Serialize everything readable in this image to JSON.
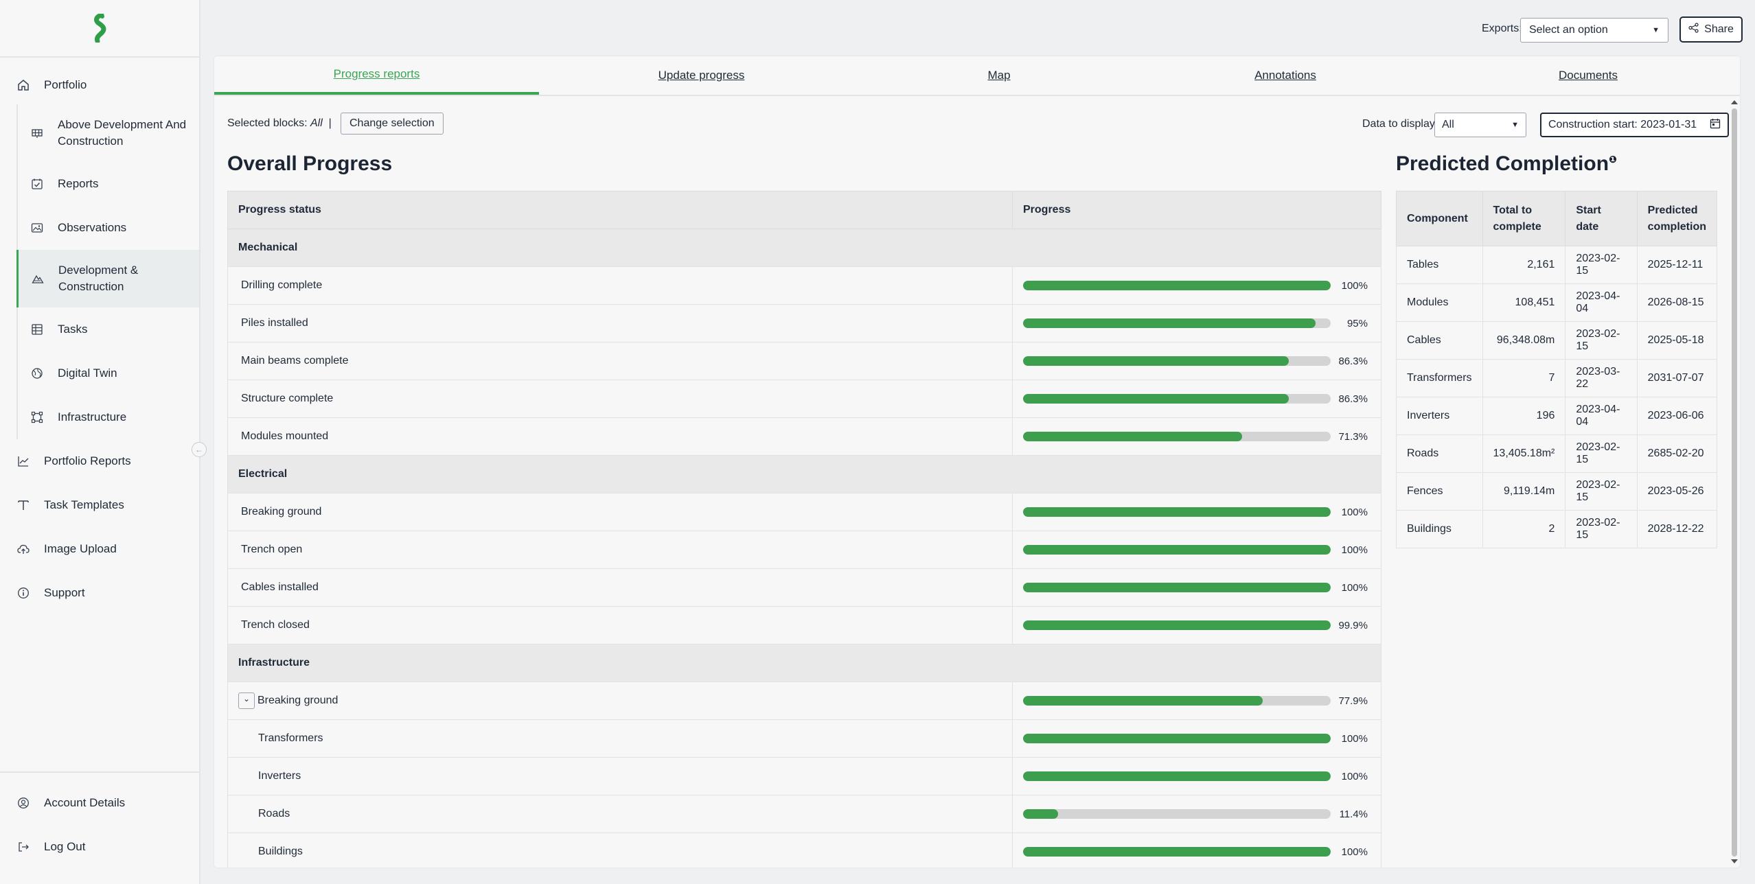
{
  "sidebar": {
    "top_items": [
      {
        "label": "Portfolio",
        "icon": "home-icon"
      }
    ],
    "sub_items": [
      {
        "label": "Above Development And Construction",
        "icon": "solar-panel-icon"
      },
      {
        "label": "Reports",
        "icon": "calendar-check-icon"
      },
      {
        "label": "Observations",
        "icon": "image-icon"
      },
      {
        "label": "Development & Construction",
        "icon": "terrain-icon"
      },
      {
        "label": "Tasks",
        "icon": "table-icon"
      },
      {
        "label": "Digital Twin",
        "icon": "globe-icon"
      },
      {
        "label": "Infrastructure",
        "icon": "frame-icon"
      }
    ],
    "items": [
      {
        "label": "Portfolio Reports",
        "icon": "chart-line-icon"
      },
      {
        "label": "Task Templates",
        "icon": "template-icon"
      },
      {
        "label": "Image Upload",
        "icon": "cloud-upload-icon"
      },
      {
        "label": "Support",
        "icon": "info-icon"
      }
    ],
    "bottom_items": [
      {
        "label": "Account Details",
        "icon": "user-circle-icon"
      },
      {
        "label": "Log Out",
        "icon": "logout-icon"
      }
    ]
  },
  "topbar": {
    "exports_label": "Exports:",
    "exports_value": "Select an option",
    "share_label": "Share"
  },
  "tabs": [
    "Progress reports",
    "Update progress",
    "Map",
    "Annotations",
    "Documents"
  ],
  "toolbar": {
    "selected_blocks_label": "Selected blocks:",
    "selected_blocks_value": "All",
    "separator": "|",
    "change_selection": "Change selection",
    "data_to_display_label": "Data to display:",
    "data_to_display_value": "All",
    "construction_start": "Construction start: 2023-01-31"
  },
  "overall": {
    "title": "Overall Progress",
    "col_status": "Progress status",
    "col_progress": "Progress",
    "rows": [
      {
        "type": "group",
        "name": "Mechanical"
      },
      {
        "type": "row",
        "name": "Drilling complete",
        "pct": "100%",
        "value": 100
      },
      {
        "type": "row",
        "name": "Piles installed",
        "pct": "95%",
        "value": 95
      },
      {
        "type": "row",
        "name": "Main beams complete",
        "pct": "86.3%",
        "value": 86.3
      },
      {
        "type": "row",
        "name": "Structure complete",
        "pct": "86.3%",
        "value": 86.3
      },
      {
        "type": "row",
        "name": "Modules mounted",
        "pct": "71.3%",
        "value": 71.3
      },
      {
        "type": "group",
        "name": "Electrical"
      },
      {
        "type": "row",
        "name": "Breaking ground",
        "pct": "100%",
        "value": 100
      },
      {
        "type": "row",
        "name": "Trench open",
        "pct": "100%",
        "value": 100
      },
      {
        "type": "row",
        "name": "Cables installed",
        "pct": "100%",
        "value": 100
      },
      {
        "type": "row",
        "name": "Trench closed",
        "pct": "99.9%",
        "value": 99.9
      },
      {
        "type": "group",
        "name": "Infrastructure"
      },
      {
        "type": "expand",
        "name": "Breaking ground",
        "pct": "77.9%",
        "value": 77.9
      },
      {
        "type": "child",
        "name": "Transformers",
        "pct": "100%",
        "value": 100
      },
      {
        "type": "child",
        "name": "Inverters",
        "pct": "100%",
        "value": 100
      },
      {
        "type": "child",
        "name": "Roads",
        "pct": "11.4%",
        "value": 11.4
      },
      {
        "type": "child",
        "name": "Buildings",
        "pct": "100%",
        "value": 100
      }
    ]
  },
  "predicted": {
    "title": "Predicted Completion",
    "info_marker": "❶",
    "headers": [
      "Component",
      "Total to complete",
      "Start date",
      "Predicted completion"
    ],
    "rows": [
      [
        "Tables",
        "2,161",
        "2023-02-15",
        "2025-12-11"
      ],
      [
        "Modules",
        "108,451",
        "2023-04-04",
        "2026-08-15"
      ],
      [
        "Cables",
        "96,348.08m",
        "2023-02-15",
        "2025-05-18"
      ],
      [
        "Transformers",
        "7",
        "2023-03-22",
        "2031-07-07"
      ],
      [
        "Inverters",
        "196",
        "2023-04-04",
        "2023-06-06"
      ],
      [
        "Roads",
        "13,405.18m²",
        "2023-02-15",
        "2685-02-20"
      ],
      [
        "Fences",
        "9,119.14m",
        "2023-02-15",
        "2023-05-26"
      ],
      [
        "Buildings",
        "2",
        "2023-02-15",
        "2028-12-22"
      ]
    ]
  },
  "colors": {
    "accent": "#3aa552",
    "bar_fill": "#3d9e4e",
    "bar_track": "#d4d4d4"
  }
}
